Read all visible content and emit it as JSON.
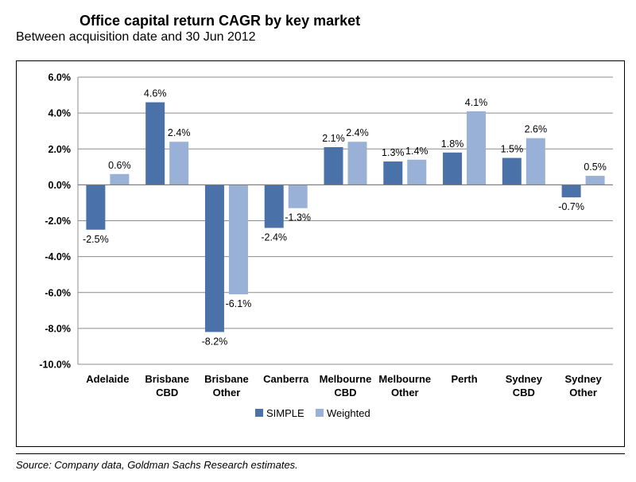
{
  "header": {
    "title": "Office capital return CAGR by key market",
    "subtitle": "Between acquisition date and 30 Jun 2012"
  },
  "footer": {
    "source": "Source: Company data, Goldman Sachs Research estimates."
  },
  "chart_data": {
    "type": "bar",
    "title": "Office capital return CAGR by key market",
    "subtitle": "Between acquisition date and 30 Jun 2012",
    "categories": [
      [
        "Adelaide"
      ],
      [
        "Brisbane",
        "CBD"
      ],
      [
        "Brisbane",
        "Other"
      ],
      [
        "Canberra"
      ],
      [
        "Melbourne",
        "CBD"
      ],
      [
        "Melbourne",
        "Other"
      ],
      [
        "Perth"
      ],
      [
        "Sydney",
        "CBD"
      ],
      [
        "Sydney",
        "Other"
      ]
    ],
    "series": [
      {
        "name": "SIMPLE",
        "color": "#4a72a8",
        "values": [
          -2.5,
          4.6,
          -8.2,
          -2.4,
          2.1,
          1.3,
          1.8,
          1.5,
          -0.7
        ],
        "labels": [
          "-2.5%",
          "4.6%",
          "-8.2%",
          "-2.4%",
          "2.1%",
          "1.3%",
          "1.8%",
          "1.5%",
          "-0.7%"
        ]
      },
      {
        "name": "Weighted",
        "color": "#99b1d6",
        "values": [
          0.6,
          2.4,
          -6.1,
          -1.3,
          2.4,
          1.4,
          4.1,
          2.6,
          0.5
        ],
        "labels": [
          "0.6%",
          "2.4%",
          "-6.1%",
          "-1.3%",
          "2.4%",
          "1.4%",
          "4.1%",
          "2.6%",
          "0.5%"
        ]
      }
    ],
    "ylim": [
      -10,
      6
    ],
    "yticks": [
      6,
      4,
      2,
      0,
      -2,
      -4,
      -6,
      -8,
      -10
    ],
    "ytick_labels": [
      "6.0%",
      "4.0%",
      "2.0%",
      "0.0%",
      "-2.0%",
      "-4.0%",
      "-6.0%",
      "-8.0%",
      "-10.0%"
    ],
    "grid": true,
    "legend_position": "bottom-center",
    "source": "Source: Company data, Goldman Sachs Research estimates."
  }
}
